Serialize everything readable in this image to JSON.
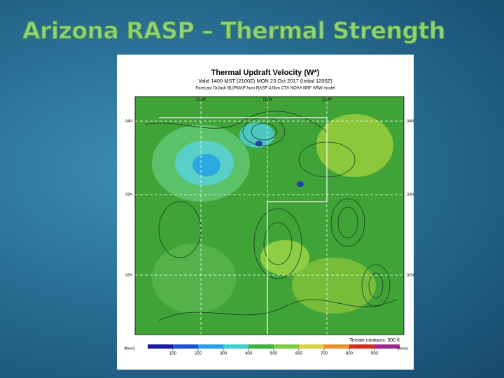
{
  "slide": {
    "title": "Arizona RASP – Thermal Strength"
  },
  "map": {
    "title": "Thermal Updraft Velocity (W*)",
    "valid_time": "Valid 1400 MST (2100Z) MON 23 Oct 2017 (Initial 1200Z)",
    "source": "Forecast DrJack BLIPMAP from RASP 4.0km CTA NOAA NRF ARW model",
    "lat_labels": [
      "34N",
      "33N",
      "32N"
    ],
    "lon_labels": [
      "112W",
      "111W",
      "110W"
    ],
    "terrain_note": "Terrain contours: 500 ft",
    "colorbar": {
      "unit": "[ft/min]",
      "ticks": [
        100,
        200,
        300,
        400,
        500,
        600,
        700,
        800,
        900
      ]
    }
  }
}
